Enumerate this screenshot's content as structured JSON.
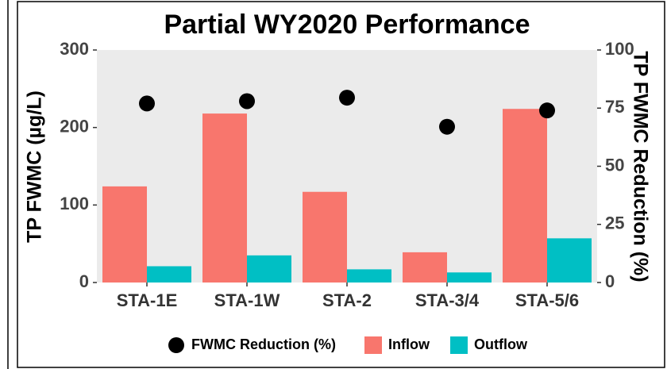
{
  "chart_data": {
    "type": "bar",
    "title": "Partial WY2020 Performance",
    "ylabel": "TP FWMC (µg/L)",
    "y2label": "TP FWMC Reduction (%)",
    "categories": [
      "STA-1E",
      "STA-1W",
      "STA-2",
      "STA-3/4",
      "STA-5/6"
    ],
    "series": [
      {
        "name": "FWMC Reduction (%)",
        "type": "scatter",
        "axis": "y2",
        "color": "#000000",
        "values": [
          77,
          78,
          79.5,
          67,
          74
        ]
      },
      {
        "name": "Inflow",
        "type": "bar",
        "color": "#f8766d",
        "values": [
          124,
          218,
          117,
          39,
          224
        ]
      },
      {
        "name": "Outflow",
        "type": "bar",
        "color": "#00bfc4",
        "values": [
          21,
          35,
          17,
          13,
          57
        ]
      }
    ],
    "ylim": [
      0,
      300
    ],
    "yticks": [
      0,
      100,
      200,
      300
    ],
    "y2lim": [
      0,
      100
    ],
    "y2ticks": [
      0,
      25,
      50,
      75,
      100
    ],
    "grid": false,
    "legend": "bottom"
  }
}
